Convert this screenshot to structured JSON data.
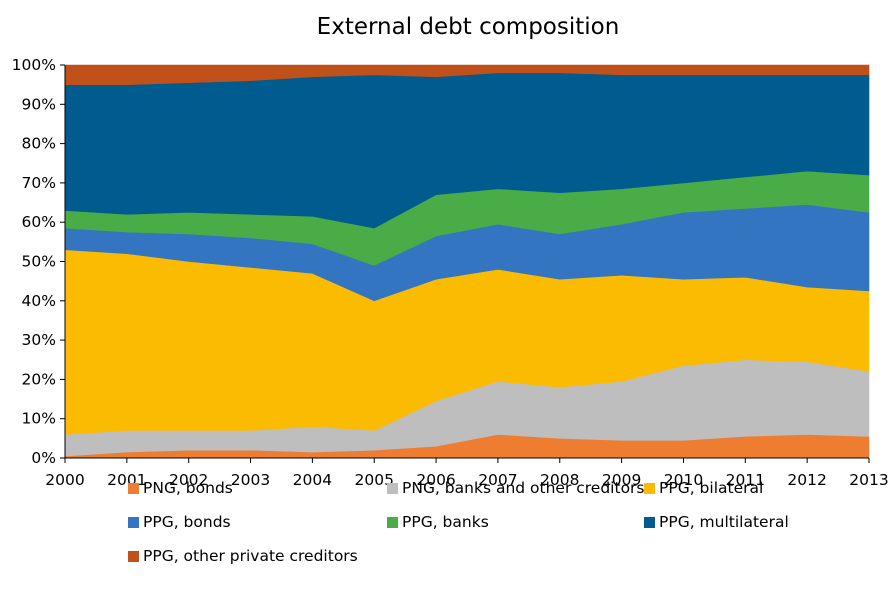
{
  "chart_data": {
    "type": "area",
    "title": "External debt composition",
    "xlabel": "",
    "ylabel": "",
    "stacked": true,
    "percent": true,
    "ylim": [
      0,
      100
    ],
    "yticks": [
      "0%",
      "10%",
      "20%",
      "30%",
      "40%",
      "50%",
      "60%",
      "70%",
      "80%",
      "90%",
      "100%"
    ],
    "x": [
      "2000",
      "2001",
      "2002",
      "2003",
      "2004",
      "2005",
      "2006",
      "2007",
      "2008",
      "2009",
      "2010",
      "2011",
      "2012",
      "2013"
    ],
    "grid": false,
    "legend_position": "bottom",
    "series": [
      {
        "name": "PNG, bonds",
        "color": "#ee7d31",
        "values": [
          0.5,
          1.5,
          2,
          2,
          1.5,
          2,
          3,
          6,
          5,
          4.5,
          4.5,
          5.5,
          6,
          5.5
        ]
      },
      {
        "name": "PNG, banks and other creditors",
        "color": "#bebebe",
        "values": [
          5.5,
          5.5,
          5,
          5,
          6.5,
          5,
          11.5,
          13.5,
          13,
          15,
          19,
          19.5,
          18.5,
          16.5
        ]
      },
      {
        "name": "PPG, bilateral",
        "color": "#fbbb00",
        "values": [
          47,
          45,
          43,
          41.5,
          39,
          33,
          31,
          28.5,
          27.5,
          27,
          22,
          21,
          19,
          20.5
        ]
      },
      {
        "name": "PPG, bonds",
        "color": "#3375c0",
        "values": [
          5.5,
          5.5,
          7,
          7.5,
          7.5,
          9,
          11,
          11.5,
          11.5,
          13,
          17,
          17.5,
          21,
          20
        ]
      },
      {
        "name": "PPG, banks",
        "color": "#4aac47",
        "values": [
          4.5,
          4.5,
          5.5,
          6,
          7,
          9.5,
          10.5,
          9,
          10.5,
          9,
          7.5,
          8,
          8.5,
          9.5
        ]
      },
      {
        "name": "PPG, multilateral",
        "color": "#005b8e",
        "values": [
          32,
          33,
          33,
          34,
          35.5,
          39,
          30,
          29.5,
          30.5,
          29,
          27.5,
          26,
          24.5,
          25.5
        ]
      },
      {
        "name": "PPG, other private creditors",
        "color": "#c0511b",
        "values": [
          5,
          5,
          4.5,
          4,
          3,
          2.5,
          3,
          2,
          2,
          2.5,
          2.5,
          2.5,
          2.5,
          2.5
        ]
      }
    ]
  }
}
